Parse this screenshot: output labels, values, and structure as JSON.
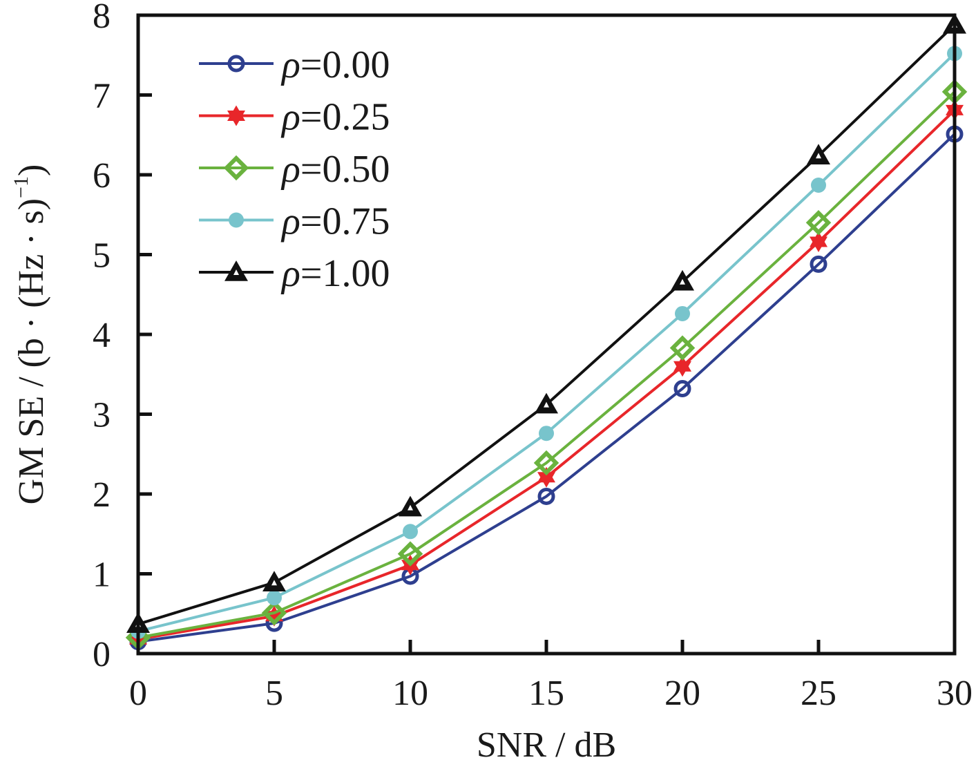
{
  "chart_data": {
    "type": "line",
    "title": "",
    "xlabel": "SNR / dB",
    "ylabel_parts": {
      "main": "GM SE / (b · (Hz · s)",
      "superscript": "−1",
      "close": ")"
    },
    "ylabel": "GM SE / (b · (Hz · s)^−1)",
    "xlim": [
      0,
      30
    ],
    "ylim": [
      0,
      8
    ],
    "x_ticks": [
      0,
      5,
      10,
      15,
      20,
      25,
      30
    ],
    "x_tick_labels": [
      "0",
      "5",
      "10",
      "15",
      "20",
      "25",
      "30"
    ],
    "y_ticks": [
      0,
      1,
      2,
      3,
      4,
      5,
      6,
      7,
      8
    ],
    "y_tick_labels": [
      "0",
      "1",
      "2",
      "3",
      "4",
      "5",
      "6",
      "7",
      "8"
    ],
    "grid": false,
    "legend_position": "top-left",
    "x": [
      0,
      5,
      10,
      15,
      20,
      25,
      30
    ],
    "series": [
      {
        "name": "ρ=0.00",
        "symbol": "ρ",
        "label_value": "=0.00",
        "color": "#2e3f8f",
        "marker": "open-circle",
        "values": [
          0.15,
          0.38,
          0.97,
          1.97,
          3.32,
          4.88,
          6.51
        ]
      },
      {
        "name": "ρ=0.25",
        "symbol": "ρ",
        "label_value": "=0.25",
        "color": "#e8262a",
        "marker": "hexagram",
        "values": [
          0.18,
          0.47,
          1.11,
          2.21,
          3.6,
          5.16,
          6.81
        ]
      },
      {
        "name": "ρ=0.50",
        "symbol": "ρ",
        "label_value": "=0.50",
        "color": "#6ab23e",
        "marker": "open-diamond",
        "values": [
          0.2,
          0.51,
          1.25,
          2.39,
          3.83,
          5.4,
          7.04
        ]
      },
      {
        "name": "ρ=0.75",
        "symbol": "ρ",
        "label_value": "=0.75",
        "color": "#78c4cc",
        "marker": "filled-circle",
        "values": [
          0.28,
          0.7,
          1.53,
          2.76,
          4.26,
          5.87,
          7.52
        ]
      },
      {
        "name": "ρ=1.00",
        "symbol": "ρ",
        "label_value": "=1.00",
        "color": "#111111",
        "marker": "triangle",
        "values": [
          0.37,
          0.89,
          1.83,
          3.12,
          4.66,
          6.24,
          7.88
        ]
      }
    ]
  }
}
